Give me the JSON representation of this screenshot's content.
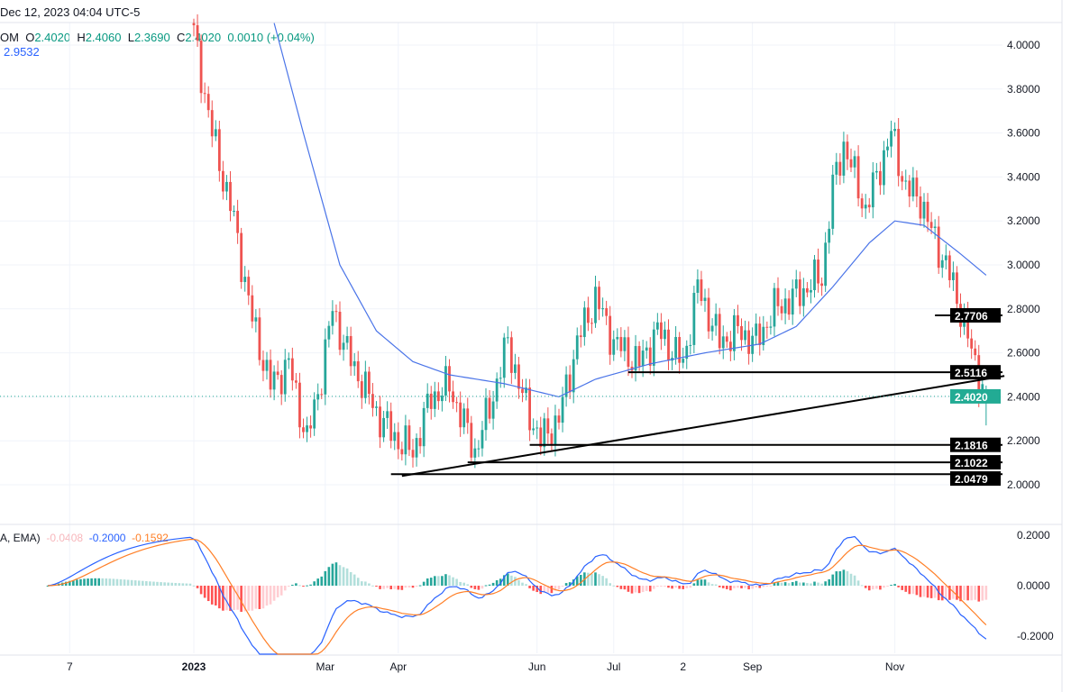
{
  "header": {
    "datetime": "Dec 12, 2023 04:04 UTC-5"
  },
  "legend": {
    "symbol_suffix": "OM",
    "o_label": "O",
    "o": "2.4020",
    "h_label": "H",
    "h": "2.4060",
    "l_label": "L",
    "l": "2.3690",
    "c_label": "C",
    "c": "2.4020",
    "change": "0.0010 (+0.04%)",
    "ema_value": "2.9532"
  },
  "macd_legend": {
    "label": "A, EMA)",
    "hist": "-0.0408",
    "macd": "-0.2000",
    "signal": "-0.1592"
  },
  "colors": {
    "up": "#26a69a",
    "down": "#ef5350",
    "ema": "#4a74e8",
    "macd": "#2962ff",
    "signal": "#ff7f27",
    "last": "#22ab94"
  },
  "chart_data": {
    "type": "candlestick",
    "y_ticks": [
      "4.0000",
      "3.8000",
      "3.6000",
      "3.4000",
      "3.2000",
      "3.0000",
      "2.8000",
      "2.6000",
      "2.4000",
      "2.2000",
      "2.0000"
    ],
    "ylim": [
      2.0,
      4.0
    ],
    "x_ticks": [
      {
        "label": "7",
        "i": -34
      },
      {
        "label": "2023",
        "i": 0
      },
      {
        "label": "Mar",
        "i": 36
      },
      {
        "label": "Apr",
        "i": 56
      },
      {
        "label": "Jun",
        "i": 94
      },
      {
        "label": "Jul",
        "i": 115
      },
      {
        "label": "2",
        "i": 134
      },
      {
        "label": "Sep",
        "i": 153
      },
      {
        "label": "Nov",
        "i": 192
      }
    ],
    "close_path": [
      [
        0,
        4.05
      ],
      [
        5,
        3.6
      ],
      [
        11,
        3.2
      ],
      [
        16,
        2.75
      ],
      [
        21,
        2.45
      ],
      [
        26,
        2.55
      ],
      [
        31,
        2.2
      ],
      [
        35,
        2.5
      ],
      [
        38,
        2.8
      ],
      [
        42,
        2.6
      ],
      [
        45,
        2.5
      ],
      [
        51,
        2.3
      ],
      [
        56,
        2.2
      ],
      [
        60,
        2.15
      ],
      [
        65,
        2.4
      ],
      [
        70,
        2.45
      ],
      [
        77,
        2.15
      ],
      [
        81,
        2.35
      ],
      [
        86,
        2.65
      ],
      [
        90,
        2.4
      ],
      [
        95,
        2.2
      ],
      [
        100,
        2.3
      ],
      [
        105,
        2.65
      ],
      [
        110,
        2.85
      ],
      [
        115,
        2.65
      ],
      [
        122,
        2.55
      ],
      [
        127,
        2.7
      ],
      [
        134,
        2.55
      ],
      [
        138,
        2.9
      ],
      [
        144,
        2.65
      ],
      [
        149,
        2.7
      ],
      [
        154,
        2.65
      ],
      [
        159,
        2.8
      ],
      [
        164,
        2.85
      ],
      [
        172,
        2.95
      ],
      [
        175,
        3.35
      ],
      [
        178,
        3.55
      ],
      [
        184,
        3.25
      ],
      [
        189,
        3.5
      ],
      [
        191,
        3.6
      ],
      [
        195,
        3.35
      ],
      [
        199,
        3.3
      ],
      [
        202,
        3.15
      ],
      [
        206,
        3.0
      ],
      [
        210,
        2.8
      ],
      [
        213,
        2.6
      ],
      [
        215,
        2.5
      ],
      [
        217,
        2.402
      ]
    ],
    "ema_path": [
      [
        22,
        4.1
      ],
      [
        30,
        3.6
      ],
      [
        40,
        3.0
      ],
      [
        50,
        2.7
      ],
      [
        60,
        2.56
      ],
      [
        70,
        2.5
      ],
      [
        85,
        2.46
      ],
      [
        100,
        2.4
      ],
      [
        110,
        2.48
      ],
      [
        125,
        2.55
      ],
      [
        140,
        2.6
      ],
      [
        155,
        2.64
      ],
      [
        165,
        2.72
      ],
      [
        175,
        2.9
      ],
      [
        185,
        3.1
      ],
      [
        192,
        3.2
      ],
      [
        200,
        3.18
      ],
      [
        210,
        3.05
      ],
      [
        217,
        2.953
      ]
    ],
    "levels": [
      {
        "value": 2.7706,
        "label": "2.7706",
        "from": 203
      },
      {
        "value": 2.5116,
        "label": "2.5116",
        "from": 119
      },
      {
        "value": 2.1816,
        "label": "2.1816",
        "from": 92
      },
      {
        "value": 2.1022,
        "label": "2.1022",
        "from": 75
      },
      {
        "value": 2.0479,
        "label": "2.0479",
        "from": 54
      }
    ],
    "trendline": [
      [
        57,
        2.04
      ],
      [
        222,
        2.495
      ]
    ],
    "last_price": {
      "value": 2.402,
      "label": "2.4020"
    },
    "macd_ticks": [
      "0.2000",
      "0.0000",
      "-0.2000"
    ]
  }
}
